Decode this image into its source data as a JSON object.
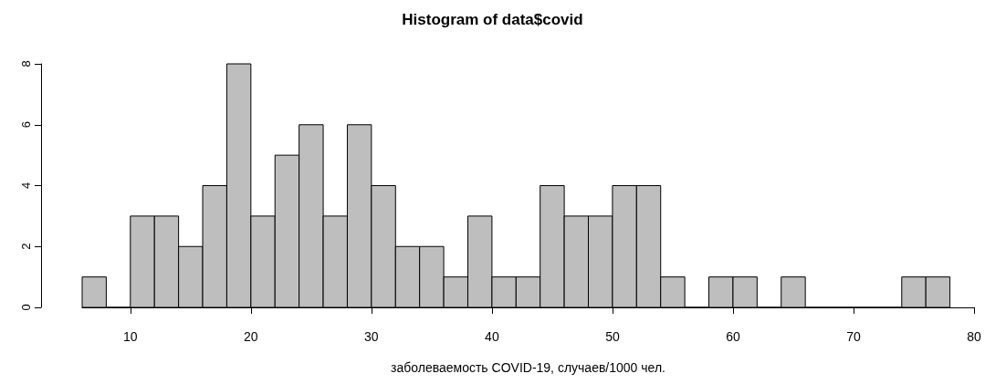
{
  "chart_data": {
    "type": "histogram",
    "title": "Histogram of data$covid",
    "xlabel": "заболеваемость COVID-19, случаев/1000 чел.",
    "bins": [
      6,
      8,
      10,
      12,
      14,
      16,
      18,
      20,
      22,
      24,
      26,
      28,
      30,
      32,
      34,
      36,
      38,
      40,
      42,
      44,
      46,
      48,
      50,
      52,
      54,
      56,
      58,
      60,
      62,
      64,
      66,
      68,
      70,
      72,
      74,
      76,
      78
    ],
    "values": [
      1,
      0,
      3,
      3,
      2,
      4,
      8,
      3,
      5,
      6,
      3,
      6,
      4,
      2,
      2,
      1,
      3,
      1,
      1,
      4,
      3,
      3,
      4,
      4,
      1,
      0,
      1,
      1,
      0,
      1,
      0,
      0,
      0,
      0,
      1,
      1
    ],
    "color": "#bebebe",
    "xlim": [
      6,
      80
    ],
    "xticks": [
      10,
      20,
      30,
      40,
      50,
      60,
      70,
      80
    ],
    "ylim": [
      0,
      8
    ],
    "yticks": [
      0,
      2,
      4,
      6,
      8
    ],
    "grid": false
  }
}
